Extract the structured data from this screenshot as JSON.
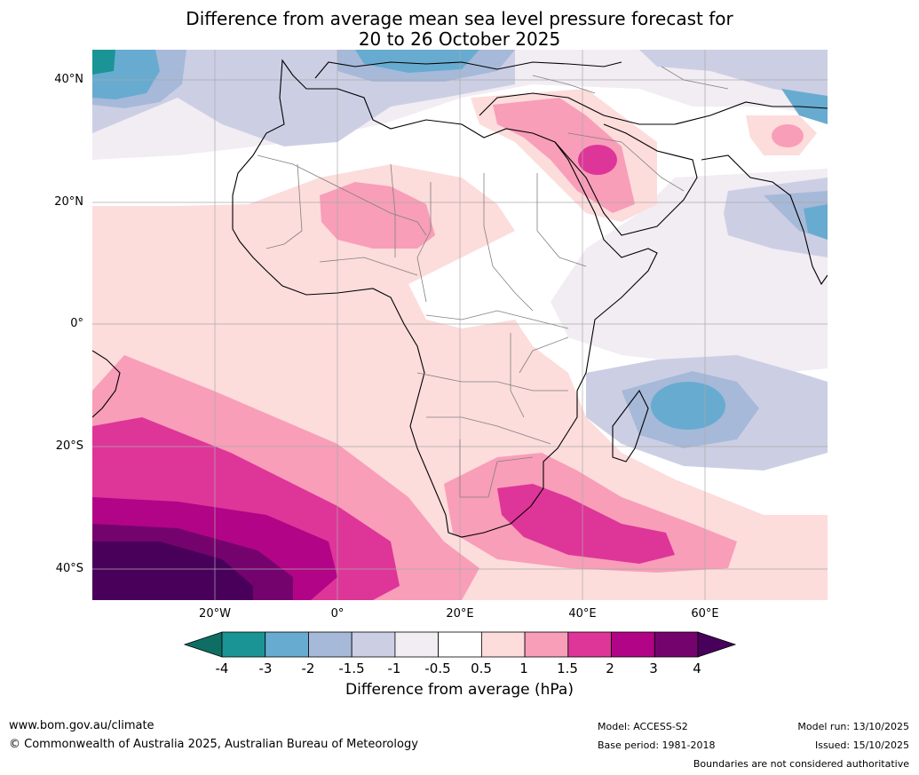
{
  "title": {
    "line1": "Difference from average mean sea level pressure forecast for",
    "line2": "20 to 26 October 2025"
  },
  "map": {
    "region": "Africa, Middle East and surrounding oceans",
    "lat_labels": [
      "40°N",
      "20°N",
      "0°",
      "20°S",
      "40°S"
    ],
    "lon_labels": [
      "20°W",
      "0°",
      "20°E",
      "40°E",
      "60°E"
    ]
  },
  "colorbar": {
    "title": "Difference from average (hPa)",
    "tick_labels": [
      "-4",
      "-3",
      "-2",
      "-1.5",
      "-1",
      "-0.5",
      "0.5",
      "1",
      "1.5",
      "2",
      "3",
      "4"
    ],
    "colors": [
      "#0e6e64",
      "#1b9496",
      "#68abd0",
      "#a6b9d8",
      "#cccfe4",
      "#f2ecf3",
      "#ffffff",
      "#fddcdc",
      "#f89eb8",
      "#de3599",
      "#b20486",
      "#75036e",
      "#49005b"
    ]
  },
  "footer": {
    "url": "www.bom.gov.au/climate",
    "copyright": "© Commonwealth of Australia 2025, Australian Bureau of Meteorology",
    "model": "Model: ACCESS-S2",
    "base_period": "Base period: 1981-2018",
    "model_run": "Model run: 13/10/2025",
    "issued": "Issued: 15/10/2025",
    "disclaimer": "Boundaries are not considered authoritative"
  }
}
